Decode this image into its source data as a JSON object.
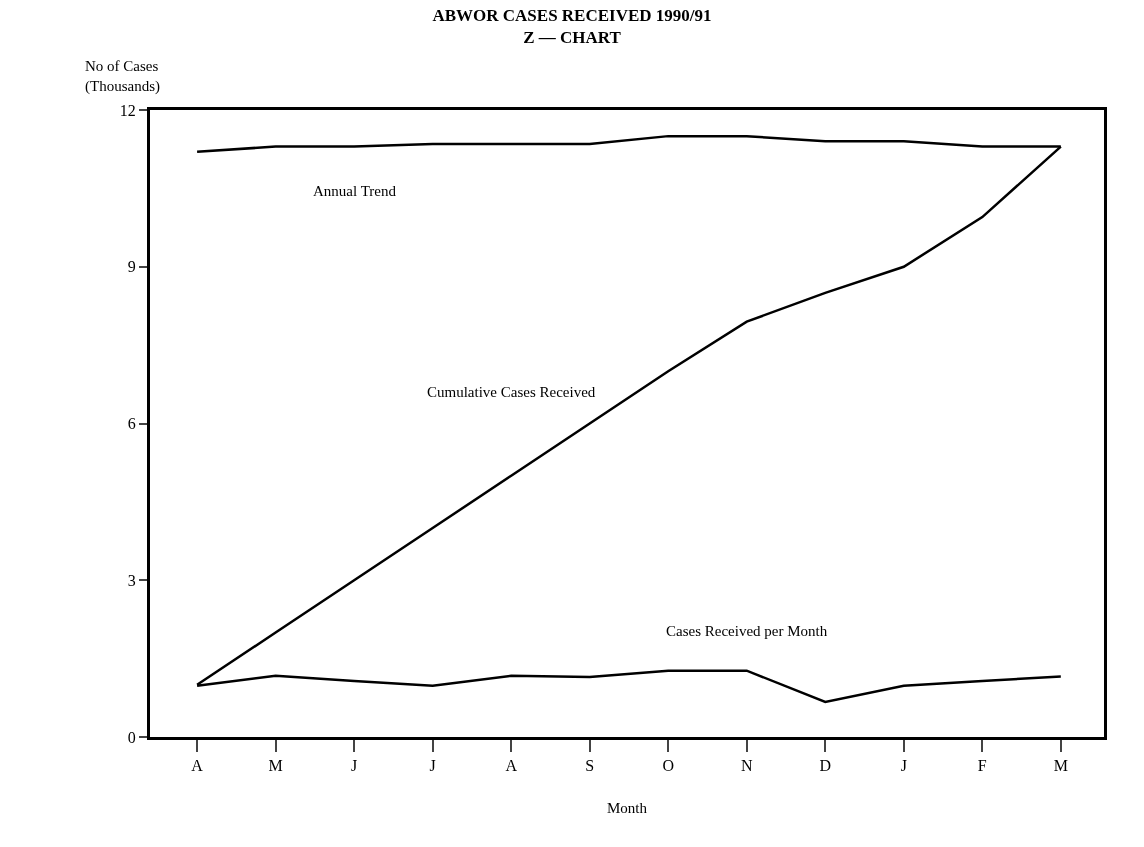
{
  "chart_data": {
    "type": "line",
    "title": "ABWOR CASES RECEIVED 1990/91\nZ — CHART",
    "xlabel": "Month",
    "ylabel": "No of Cases\n(Thousands)",
    "categories": [
      "A",
      "M",
      "J",
      "J",
      "A",
      "S",
      "O",
      "N",
      "D",
      "J",
      "F",
      "M"
    ],
    "ylim": [
      0,
      12
    ],
    "yticks": [
      0,
      3,
      6,
      9,
      12
    ],
    "legend": false,
    "marker": "none",
    "line_style": "solid",
    "series": [
      {
        "name": "Annual Trend",
        "color": "#000000",
        "values": [
          11.2,
          11.3,
          11.3,
          11.35,
          11.35,
          11.35,
          11.5,
          11.5,
          11.4,
          11.4,
          11.3,
          11.3
        ]
      },
      {
        "name": "Cumulative Cases Received",
        "color": "#000000",
        "values": [
          1.0,
          2.0,
          3.0,
          4.0,
          5.0,
          6.0,
          7.0,
          7.95,
          8.5,
          9.0,
          9.95,
          11.3
        ]
      },
      {
        "name": "Cases Received per Month",
        "color": "#000000",
        "values": [
          0.98,
          1.17,
          1.07,
          0.98,
          1.17,
          1.15,
          1.27,
          1.27,
          0.67,
          0.98,
          1.07,
          1.16
        ]
      }
    ]
  }
}
